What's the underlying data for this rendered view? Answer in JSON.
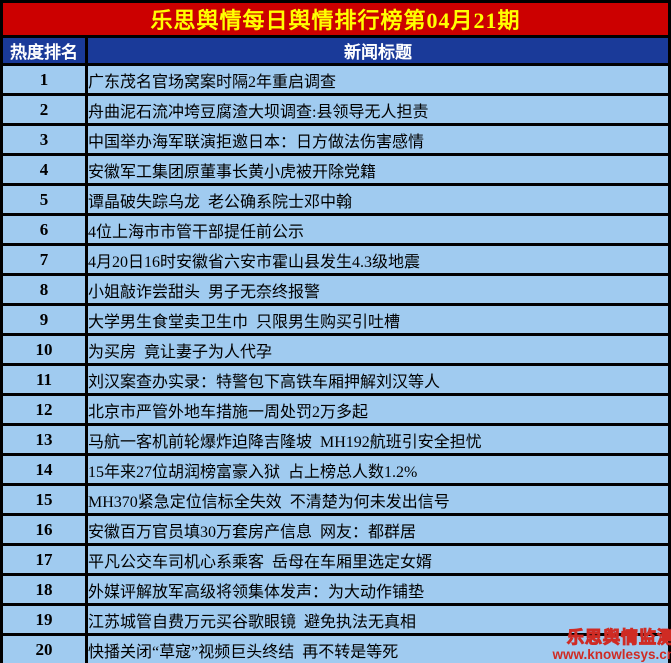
{
  "title": "乐思舆情每日舆情排行榜第04月21期",
  "columns": {
    "rank": "热度排名",
    "headline": "新闻标题"
  },
  "rows": [
    {
      "rank": "1",
      "headline": "广东茂名官场窝案时隔2年重启调查"
    },
    {
      "rank": "2",
      "headline": "舟曲泥石流冲垮豆腐渣大坝调查:县领导无人担责"
    },
    {
      "rank": "3",
      "headline": "中国举办海军联演拒邀日本：日方做法伤害感情"
    },
    {
      "rank": "4",
      "headline": "安徽军工集团原董事长黄小虎被开除党籍"
    },
    {
      "rank": "5",
      "headline": "谭晶破失踪乌龙  老公确系院士邓中翰"
    },
    {
      "rank": "6",
      "headline": "4位上海市市管干部提任前公示"
    },
    {
      "rank": "7",
      "headline": "4月20日16时安徽省六安市霍山县发生4.3级地震"
    },
    {
      "rank": "8",
      "headline": "小姐敲诈尝甜头  男子无奈终报警"
    },
    {
      "rank": "9",
      "headline": "大学男生食堂卖卫生巾  只限男生购买引吐槽"
    },
    {
      "rank": "10",
      "headline": "为买房  竟让妻子为人代孕"
    },
    {
      "rank": "11",
      "headline": "刘汉案查办实录：特警包下高铁车厢押解刘汉等人"
    },
    {
      "rank": "12",
      "headline": "北京市严管外地车措施一周处罚2万多起"
    },
    {
      "rank": "13",
      "headline": "马航一客机前轮爆炸迫降吉隆坡  MH192航班引安全担忧"
    },
    {
      "rank": "14",
      "headline": "15年来27位胡润榜富豪入狱  占上榜总人数1.2%"
    },
    {
      "rank": "15",
      "headline": "MH370紧急定位信标全失效  不清楚为何未发出信号"
    },
    {
      "rank": "16",
      "headline": "安徽百万官员填30万套房产信息  网友：都群居"
    },
    {
      "rank": "17",
      "headline": "平凡公交车司机心系乘客  岳母在车厢里选定女婿"
    },
    {
      "rank": "18",
      "headline": "外媒评解放军高级将领集体发声：为大动作铺垫"
    },
    {
      "rank": "19",
      "headline": "江苏城管自费万元买谷歌眼镜  避免执法无真相"
    },
    {
      "rank": "20",
      "headline": "快播关闭“草寇”视频巨头终结  再不转是等死"
    }
  ],
  "watermark": {
    "brand": "乐思舆情监测",
    "url": "www.knowlesys.cn"
  },
  "colors": {
    "title_bg": "#cc0000",
    "title_text": "#ffff00",
    "header_bg": "#1a3a99",
    "header_text": "#ffffff",
    "row_bg": "#a0cbf0",
    "row_text": "#000000",
    "border": "#000000",
    "watermark": "#cf2b24"
  }
}
